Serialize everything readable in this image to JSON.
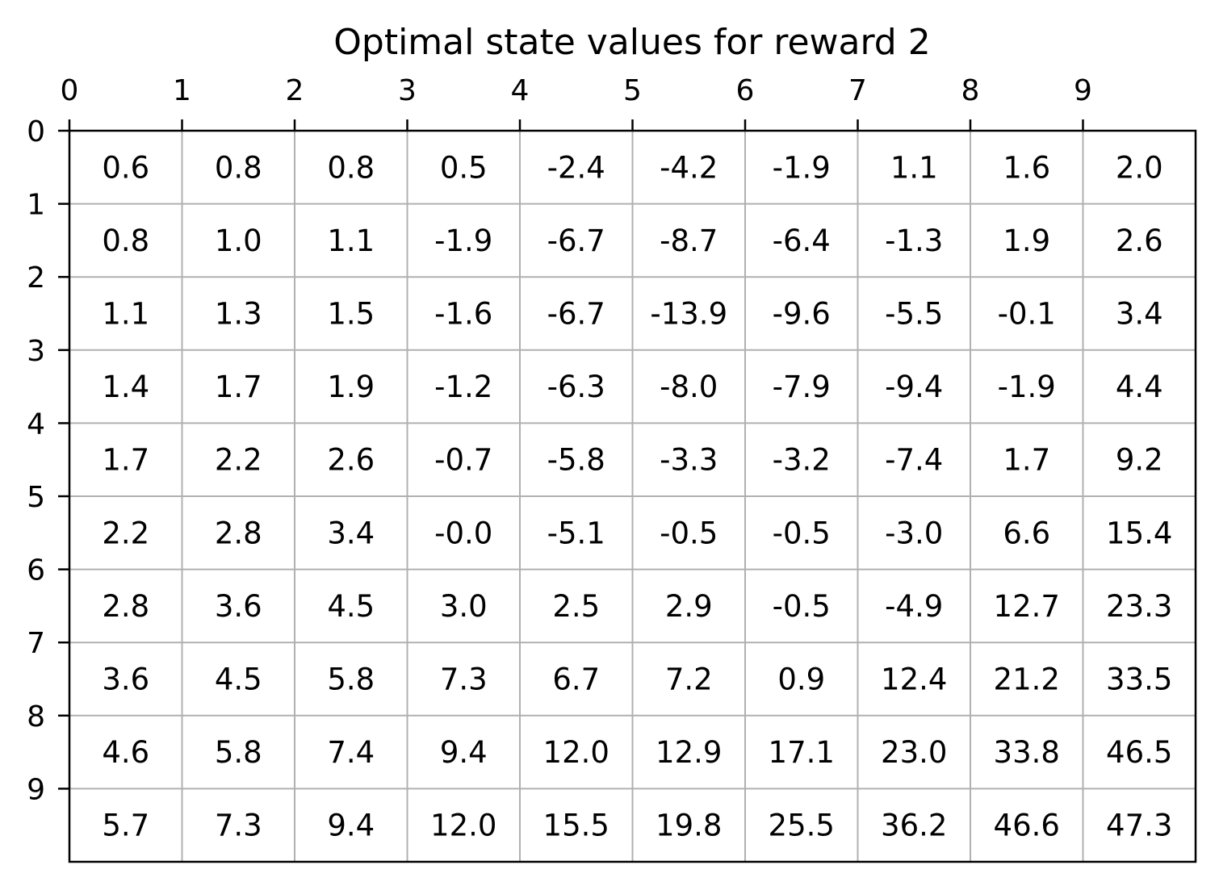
{
  "chart_data": {
    "type": "table",
    "title": "Optimal state values for reward 2",
    "x_ticks": [
      "0",
      "1",
      "2",
      "3",
      "4",
      "5",
      "6",
      "7",
      "8",
      "9"
    ],
    "y_ticks": [
      "0",
      "1",
      "2",
      "3",
      "4",
      "5",
      "6",
      "7",
      "8",
      "9"
    ],
    "x_axis_position": "top",
    "grid": true,
    "grid_color": "#b0b0b0",
    "values": [
      [
        "0.6",
        "0.8",
        "0.8",
        "0.5",
        "-2.4",
        "-4.2",
        "-1.9",
        "1.1",
        "1.6",
        "2.0"
      ],
      [
        "0.8",
        "1.0",
        "1.1",
        "-1.9",
        "-6.7",
        "-8.7",
        "-6.4",
        "-1.3",
        "1.9",
        "2.6"
      ],
      [
        "1.1",
        "1.3",
        "1.5",
        "-1.6",
        "-6.7",
        "-13.9",
        "-9.6",
        "-5.5",
        "-0.1",
        "3.4"
      ],
      [
        "1.4",
        "1.7",
        "1.9",
        "-1.2",
        "-6.3",
        "-8.0",
        "-7.9",
        "-9.4",
        "-1.9",
        "4.4"
      ],
      [
        "1.7",
        "2.2",
        "2.6",
        "-0.7",
        "-5.8",
        "-3.3",
        "-3.2",
        "-7.4",
        "1.7",
        "9.2"
      ],
      [
        "2.2",
        "2.8",
        "3.4",
        "-0.0",
        "-5.1",
        "-0.5",
        "-0.5",
        "-3.0",
        "6.6",
        "15.4"
      ],
      [
        "2.8",
        "3.6",
        "4.5",
        "3.0",
        "2.5",
        "2.9",
        "-0.5",
        "-4.9",
        "12.7",
        "23.3"
      ],
      [
        "3.6",
        "4.5",
        "5.8",
        "7.3",
        "6.7",
        "7.2",
        "0.9",
        "12.4",
        "21.2",
        "33.5"
      ],
      [
        "4.6",
        "5.8",
        "7.4",
        "9.4",
        "12.0",
        "12.9",
        "17.1",
        "23.0",
        "33.8",
        "46.5"
      ],
      [
        "5.7",
        "7.3",
        "9.4",
        "12.0",
        "15.5",
        "19.8",
        "25.5",
        "36.2",
        "46.6",
        "47.3"
      ]
    ]
  }
}
